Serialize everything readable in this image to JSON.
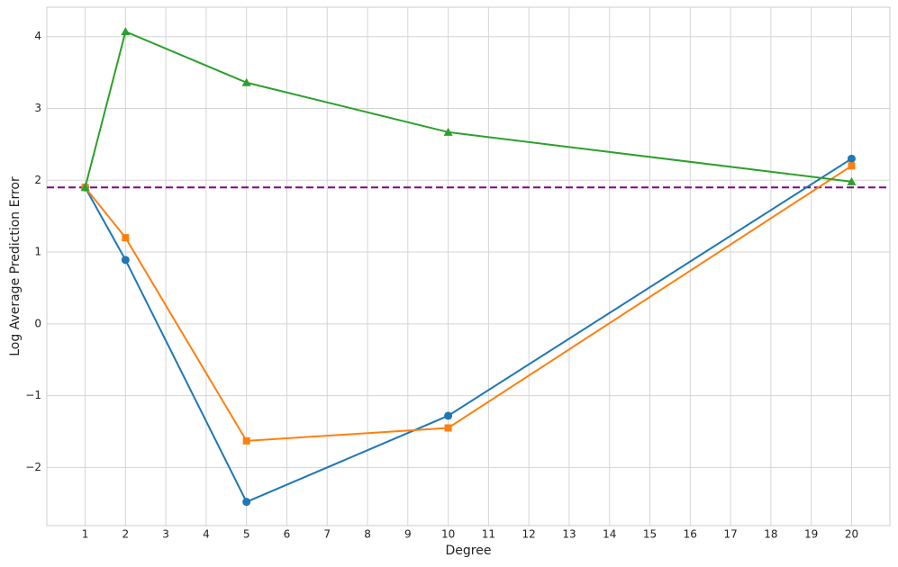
{
  "chart_data": {
    "type": "line",
    "x_label": "Degree",
    "y_label": "Log Average Prediction Error",
    "x": [
      1,
      2,
      5,
      10,
      20
    ],
    "series": [
      {
        "color": "#1f77b4",
        "marker": "circle",
        "values": [
          1.9,
          0.89,
          -2.48,
          -1.28,
          2.3
        ]
      },
      {
        "color": "#ff7f0e",
        "marker": "square",
        "values": [
          1.9,
          1.2,
          -1.63,
          -1.45,
          2.2
        ]
      },
      {
        "color": "#2ca02c",
        "marker": "triangle",
        "values": [
          1.9,
          4.07,
          3.36,
          2.67,
          1.98
        ]
      }
    ],
    "hline": {
      "value": 1.9,
      "color": "purple",
      "style": "dashed"
    },
    "xlim": [
      0.05,
      20.95
    ],
    "ylim": [
      -2.81,
      4.41
    ],
    "xticks": [
      1,
      2,
      3,
      4,
      5,
      6,
      7,
      8,
      9,
      10,
      11,
      12,
      13,
      14,
      15,
      16,
      17,
      18,
      19,
      20
    ],
    "yticks": [
      {
        "value": -2,
        "label": "−2"
      },
      {
        "value": -1,
        "label": "−1"
      },
      0,
      1,
      2,
      3,
      4
    ],
    "grid": true
  }
}
